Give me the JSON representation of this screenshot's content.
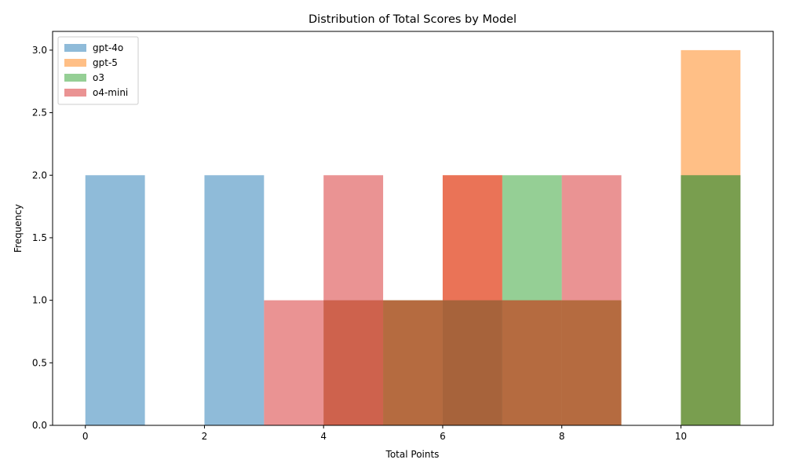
{
  "chart_data": {
    "type": "bar",
    "title": "Distribution of Total Scores by Model",
    "xlabel": "Total Points",
    "ylabel": "Frequency",
    "xlim": [
      -0.55,
      11.55
    ],
    "ylim": [
      0,
      3.15
    ],
    "x_ticks": [
      "0",
      "2",
      "4",
      "6",
      "8",
      "10"
    ],
    "y_ticks": [
      "0.0",
      "0.5",
      "1.0",
      "1.5",
      "2.0",
      "2.5",
      "3.0"
    ],
    "legend_position": "top-left",
    "bin_edges": [
      0,
      1,
      2,
      3,
      4,
      5,
      6,
      7,
      8,
      9,
      10,
      11
    ],
    "bar_opacity": 0.5,
    "series": [
      {
        "name": "gpt-4o",
        "color": "#1f77b4",
        "counts": [
          2,
          0,
          2,
          0,
          1,
          0,
          1,
          0,
          0,
          0,
          2
        ]
      },
      {
        "name": "gpt-5",
        "color": "#ff7f0e",
        "counts": [
          0,
          0,
          0,
          0,
          1,
          1,
          2,
          1,
          1,
          0,
          3
        ]
      },
      {
        "name": "o3",
        "color": "#2ca02c",
        "counts": [
          0,
          0,
          0,
          0,
          0,
          1,
          1,
          2,
          1,
          0,
          2
        ]
      },
      {
        "name": "o4-mini",
        "color": "#d62728",
        "counts": [
          0,
          0,
          0,
          1,
          2,
          1,
          2,
          1,
          2,
          0,
          0
        ]
      }
    ]
  }
}
